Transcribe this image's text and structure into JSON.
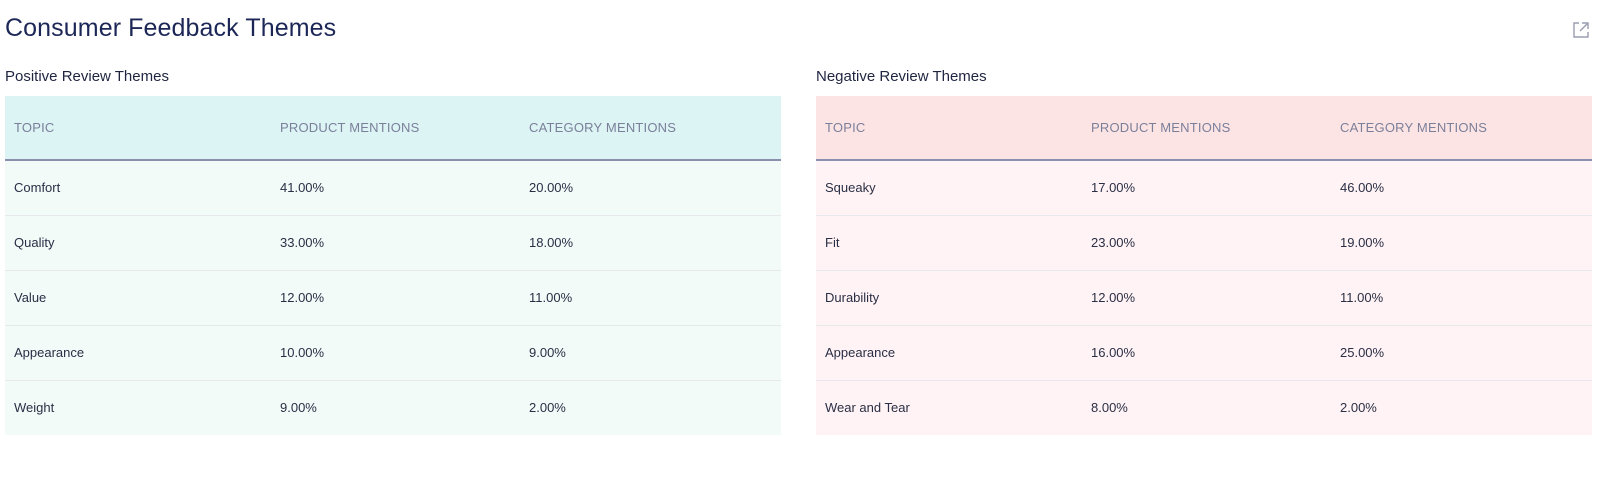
{
  "header": {
    "title": "Consumer Feedback Themes",
    "external_link_icon": "external-link-icon"
  },
  "positive": {
    "title": "Positive Review Themes",
    "columns": [
      "TOPIC",
      "PRODUCT MENTIONS",
      "CATEGORY MENTIONS"
    ],
    "rows": [
      [
        "Comfort",
        "41.00%",
        "20.00%"
      ],
      [
        "Quality",
        "33.00%",
        "18.00%"
      ],
      [
        "Value",
        "12.00%",
        "11.00%"
      ],
      [
        "Appearance",
        "10.00%",
        "9.00%"
      ],
      [
        "Weight",
        "9.00%",
        "2.00%"
      ]
    ],
    "colors": {
      "header_bg": "#ddf4f4",
      "row_bg": "#f2fbf8"
    }
  },
  "negative": {
    "title": "Negative Review Themes",
    "columns": [
      "TOPIC",
      "PRODUCT MENTIONS",
      "CATEGORY MENTIONS"
    ],
    "rows": [
      [
        "Squeaky",
        "17.00%",
        "46.00%"
      ],
      [
        "Fit",
        "23.00%",
        "19.00%"
      ],
      [
        "Durability",
        "12.00%",
        "11.00%"
      ],
      [
        "Appearance",
        "16.00%",
        "25.00%"
      ],
      [
        "Wear and Tear",
        "8.00%",
        "2.00%"
      ]
    ],
    "colors": {
      "header_bg": "#fde4e4",
      "row_bg": "#fff3f5"
    }
  }
}
